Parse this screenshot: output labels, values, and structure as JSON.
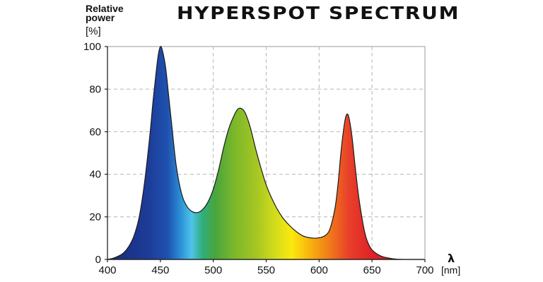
{
  "chart_data": {
    "type": "area",
    "title": "HYPERSPOT SPECTRUM",
    "ylabel_line1": "Relative",
    "ylabel_line2": "power",
    "ylabel_unit": "[%]",
    "xlabel_symbol": "λ",
    "xlabel_unit": "[nm]",
    "xlim": [
      400,
      700
    ],
    "ylim": [
      0,
      100
    ],
    "xticks": [
      "400",
      "450",
      "500",
      "550",
      "600",
      "650",
      "700"
    ],
    "yticks": [
      "0",
      "20",
      "40",
      "60",
      "80",
      "100"
    ],
    "grid": true,
    "fill": "visible-spectrum gradient",
    "series": [
      {
        "x": [
          400,
          405,
          410,
          415,
          420,
          425,
          430,
          435,
          440,
          443,
          446,
          448,
          450,
          452,
          455,
          458,
          461,
          465,
          470,
          475,
          480,
          485,
          490,
          495,
          500,
          505,
          510,
          515,
          520,
          523,
          526,
          530,
          535,
          540,
          545,
          550,
          555,
          560,
          565,
          570,
          575,
          580,
          585,
          590,
          595,
          600,
          605,
          610,
          615,
          618,
          621,
          624,
          626,
          628,
          631,
          634,
          637,
          640,
          643,
          646,
          650,
          655,
          660,
          665,
          670,
          675,
          680,
          685,
          690,
          695,
          700
        ],
        "y": [
          0,
          0.5,
          1.5,
          3,
          6,
          11,
          20,
          36,
          58,
          74,
          88,
          96,
          100,
          98,
          90,
          76,
          62,
          44,
          31,
          25,
          22.5,
          22,
          23.5,
          27,
          33,
          42,
          53,
          62,
          68,
          70.5,
          71,
          69,
          62,
          52,
          43,
          35,
          29,
          24,
          20,
          17,
          14.5,
          12.5,
          11,
          10.3,
          10,
          10.2,
          11,
          14,
          24,
          36,
          52,
          64,
          68,
          67,
          58,
          44,
          31,
          21,
          13,
          8,
          4.5,
          2.5,
          1.3,
          0.7,
          0.3,
          0.1,
          0,
          0,
          0,
          0,
          0
        ]
      }
    ]
  }
}
